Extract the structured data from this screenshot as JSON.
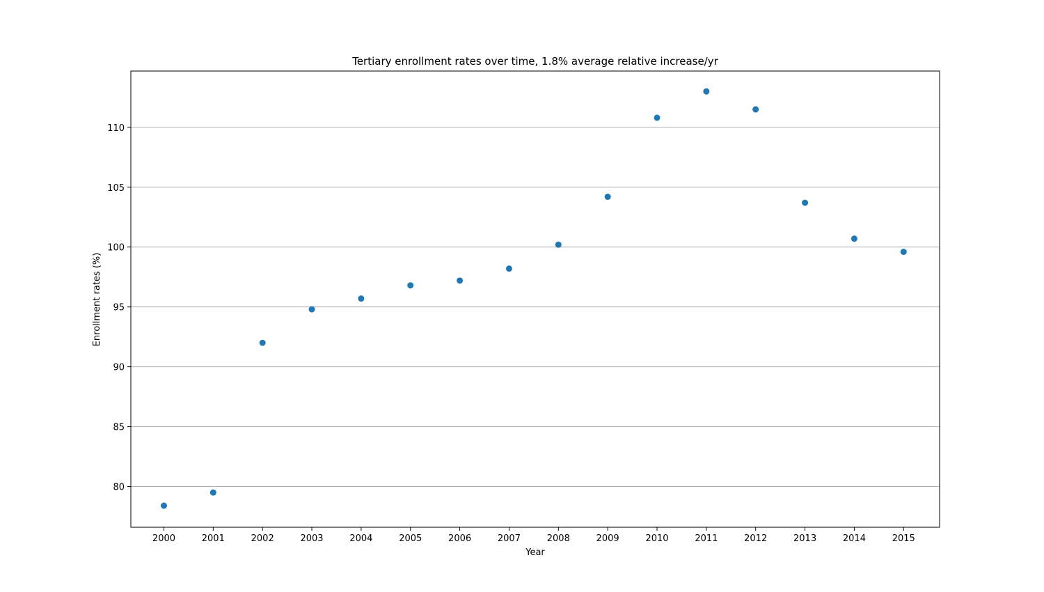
{
  "chart_data": {
    "type": "scatter",
    "title": "Tertiary enrollment rates over time, 1.8% average relative increase/yr",
    "xlabel": "Year",
    "ylabel": "Enrollment rates (%)",
    "x": [
      2000,
      2001,
      2002,
      2003,
      2004,
      2005,
      2006,
      2007,
      2008,
      2009,
      2010,
      2011,
      2012,
      2013,
      2014,
      2015
    ],
    "xticks": [
      "2000",
      "2001",
      "2002",
      "2003",
      "2004",
      "2005",
      "2006",
      "2007",
      "2008",
      "2009",
      "2010",
      "2011",
      "2012",
      "2013",
      "2014",
      "2015"
    ],
    "series": [
      {
        "values": [
          78.4,
          79.5,
          92.0,
          94.8,
          95.7,
          96.8,
          97.2,
          98.2,
          100.2,
          104.2,
          110.8,
          113.0,
          111.5,
          103.7,
          100.7,
          99.6
        ]
      }
    ],
    "yticks": [
      80,
      85,
      90,
      95,
      100,
      105,
      110
    ],
    "xlim": [
      1999.33,
      2015.73
    ],
    "ylim": [
      76.6,
      114.7
    ],
    "grid": "horizontal",
    "marker_color": "#1f77b4"
  }
}
